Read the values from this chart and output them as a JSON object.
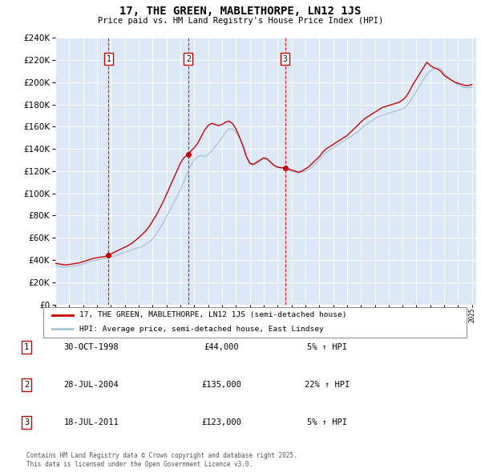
{
  "title": "17, THE GREEN, MABLETHORPE, LN12 1JS",
  "subtitle": "Price paid vs. HM Land Registry's House Price Index (HPI)",
  "legend_line1": "17, THE GREEN, MABLETHORPE, LN12 1JS (semi-detached house)",
  "legend_line2": "HPI: Average price, semi-detached house, East Lindsey",
  "footer": "Contains HM Land Registry data © Crown copyright and database right 2025.\nThis data is licensed under the Open Government Licence v3.0.",
  "ylim": [
    0,
    240000
  ],
  "yticks": [
    0,
    20000,
    40000,
    60000,
    80000,
    100000,
    120000,
    140000,
    160000,
    180000,
    200000,
    220000,
    240000
  ],
  "background_color": "#dce8f5",
  "red_color": "#cc0000",
  "blue_color": "#aac4dc",
  "purchases": [
    {
      "num": 1,
      "date": "30-OCT-1998",
      "price": 44000,
      "pct": "5%",
      "direction": "↑",
      "year": 1998.83
    },
    {
      "num": 2,
      "date": "28-JUL-2004",
      "price": 135000,
      "pct": "22%",
      "direction": "↑",
      "year": 2004.57
    },
    {
      "num": 3,
      "date": "18-JUL-2011",
      "price": 123000,
      "pct": "5%",
      "direction": "↑",
      "year": 2011.54
    }
  ],
  "hpi_years": [
    1995.0,
    1995.25,
    1995.5,
    1995.75,
    1996.0,
    1996.25,
    1996.5,
    1996.75,
    1997.0,
    1997.25,
    1997.5,
    1997.75,
    1998.0,
    1998.25,
    1998.5,
    1998.75,
    1999.0,
    1999.25,
    1999.5,
    1999.75,
    2000.0,
    2000.25,
    2000.5,
    2000.75,
    2001.0,
    2001.25,
    2001.5,
    2001.75,
    2002.0,
    2002.25,
    2002.5,
    2002.75,
    2003.0,
    2003.25,
    2003.5,
    2003.75,
    2004.0,
    2004.25,
    2004.5,
    2004.75,
    2005.0,
    2005.25,
    2005.5,
    2005.75,
    2006.0,
    2006.25,
    2006.5,
    2006.75,
    2007.0,
    2007.25,
    2007.5,
    2007.75,
    2008.0,
    2008.25,
    2008.5,
    2008.75,
    2009.0,
    2009.25,
    2009.5,
    2009.75,
    2010.0,
    2010.25,
    2010.5,
    2010.75,
    2011.0,
    2011.25,
    2011.5,
    2011.75,
    2012.0,
    2012.25,
    2012.5,
    2012.75,
    2013.0,
    2013.25,
    2013.5,
    2013.75,
    2014.0,
    2014.25,
    2014.5,
    2014.75,
    2015.0,
    2015.25,
    2015.5,
    2015.75,
    2016.0,
    2016.25,
    2016.5,
    2016.75,
    2017.0,
    2017.25,
    2017.5,
    2017.75,
    2018.0,
    2018.25,
    2018.5,
    2018.75,
    2019.0,
    2019.25,
    2019.5,
    2019.75,
    2020.0,
    2020.25,
    2020.5,
    2020.75,
    2021.0,
    2021.25,
    2021.5,
    2021.75,
    2022.0,
    2022.25,
    2022.5,
    2022.75,
    2023.0,
    2023.25,
    2023.5,
    2023.75,
    2024.0,
    2024.25,
    2024.5,
    2024.75,
    2025.0
  ],
  "hpi_values": [
    35000,
    34500,
    34000,
    33500,
    34000,
    34500,
    35000,
    35500,
    36500,
    37500,
    38500,
    39500,
    40000,
    40500,
    41000,
    42000,
    43000,
    43500,
    44500,
    46000,
    47000,
    48000,
    49000,
    50000,
    51000,
    52000,
    54000,
    56000,
    59000,
    63000,
    68000,
    73000,
    79000,
    85000,
    91000,
    97000,
    103000,
    110000,
    118000,
    125000,
    130000,
    133000,
    134000,
    133000,
    135000,
    138000,
    142000,
    146000,
    150000,
    155000,
    158000,
    158000,
    155000,
    150000,
    143000,
    135000,
    128000,
    126000,
    127000,
    129000,
    131000,
    130000,
    128000,
    126000,
    124000,
    123000,
    122000,
    121000,
    120000,
    119000,
    118000,
    119000,
    120000,
    122000,
    124000,
    127000,
    130000,
    134000,
    137000,
    139000,
    141000,
    143000,
    145000,
    147000,
    149000,
    151000,
    153000,
    155000,
    158000,
    161000,
    163000,
    165000,
    167000,
    169000,
    170000,
    171000,
    172000,
    173000,
    174000,
    175000,
    176000,
    178000,
    182000,
    187000,
    192000,
    197000,
    202000,
    207000,
    210000,
    212000,
    213000,
    212000,
    208000,
    205000,
    202000,
    200000,
    198000,
    196000,
    195000,
    195000,
    196000
  ],
  "red_years": [
    1995.0,
    1995.25,
    1995.5,
    1995.75,
    1996.0,
    1996.25,
    1996.5,
    1996.75,
    1997.0,
    1997.25,
    1997.5,
    1997.75,
    1998.0,
    1998.25,
    1998.5,
    1998.83,
    1999.0,
    1999.25,
    1999.5,
    1999.75,
    2000.0,
    2000.25,
    2000.5,
    2000.75,
    2001.0,
    2001.25,
    2001.5,
    2001.75,
    2002.0,
    2002.25,
    2002.5,
    2002.75,
    2003.0,
    2003.25,
    2003.5,
    2003.75,
    2004.0,
    2004.25,
    2004.57,
    2004.75,
    2005.0,
    2005.25,
    2005.5,
    2005.75,
    2006.0,
    2006.25,
    2006.5,
    2006.75,
    2007.0,
    2007.25,
    2007.5,
    2007.75,
    2008.0,
    2008.25,
    2008.5,
    2008.75,
    2009.0,
    2009.25,
    2009.5,
    2009.75,
    2010.0,
    2010.25,
    2010.5,
    2010.75,
    2011.0,
    2011.25,
    2011.54,
    2011.75,
    2012.0,
    2012.25,
    2012.5,
    2012.75,
    2013.0,
    2013.25,
    2013.5,
    2013.75,
    2014.0,
    2014.25,
    2014.5,
    2014.75,
    2015.0,
    2015.25,
    2015.5,
    2015.75,
    2016.0,
    2016.25,
    2016.5,
    2016.75,
    2017.0,
    2017.25,
    2017.5,
    2017.75,
    2018.0,
    2018.25,
    2018.5,
    2018.75,
    2019.0,
    2019.25,
    2019.5,
    2019.75,
    2020.0,
    2020.25,
    2020.5,
    2020.75,
    2021.0,
    2021.25,
    2021.5,
    2021.75,
    2022.0,
    2022.25,
    2022.5,
    2022.75,
    2023.0,
    2023.25,
    2023.5,
    2023.75,
    2024.0,
    2024.25,
    2024.5,
    2024.75,
    2025.0
  ],
  "red_values": [
    37000,
    36500,
    36000,
    35500,
    36000,
    36500,
    37000,
    37500,
    38500,
    39500,
    40500,
    41500,
    42000,
    42500,
    43000,
    44000,
    45500,
    47000,
    48500,
    50000,
    51500,
    53000,
    55000,
    57500,
    60000,
    63000,
    66000,
    70000,
    75000,
    80000,
    86000,
    92000,
    99000,
    106000,
    113000,
    120000,
    127000,
    132000,
    135000,
    138000,
    141000,
    145000,
    151000,
    157000,
    161000,
    163000,
    162000,
    161000,
    162000,
    164000,
    165000,
    163000,
    158000,
    151000,
    143000,
    133000,
    127000,
    126000,
    128000,
    130000,
    132000,
    131000,
    128000,
    125000,
    123500,
    123000,
    123000,
    122000,
    121000,
    120000,
    119000,
    120000,
    122000,
    124000,
    127000,
    130000,
    133000,
    137000,
    140000,
    142000,
    144000,
    146000,
    148000,
    150000,
    152000,
    155000,
    158000,
    161000,
    164000,
    167000,
    169000,
    171000,
    173000,
    175000,
    177000,
    178000,
    179000,
    180000,
    181000,
    182000,
    184000,
    187000,
    192000,
    198000,
    203000,
    208000,
    213000,
    218000,
    215000,
    213000,
    212000,
    210000,
    206000,
    204000,
    202000,
    200000,
    199000,
    198000,
    197000,
    197000,
    198000
  ]
}
